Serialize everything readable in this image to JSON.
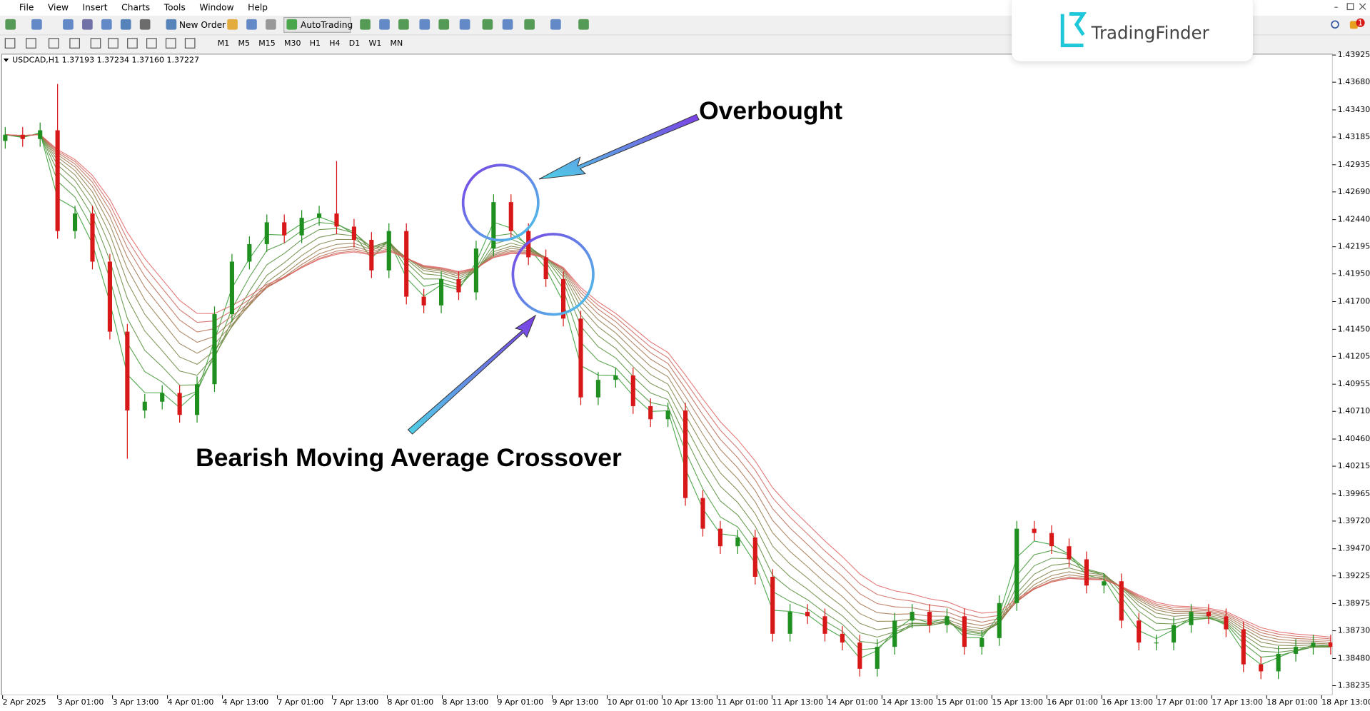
{
  "menu": [
    "File",
    "View",
    "Insert",
    "Charts",
    "Tools",
    "Window",
    "Help"
  ],
  "toolbar": {
    "buttons": [
      "New Order",
      "AutoTrading"
    ],
    "timeframes": [
      "M1",
      "M5",
      "M15",
      "M30",
      "H1",
      "H4",
      "D1",
      "W1",
      "MN"
    ]
  },
  "logo": "TradingFinder",
  "notification_count": 1,
  "chart_data": {
    "type": "candlestick",
    "info": "USDCAD,H1  1.37193 1.37234 1.37160 1.37227",
    "up_color": "#1f8f1f",
    "down_color": "#d81818",
    "ribbon_colors": [
      "#2e9a2e",
      "#e06060"
    ],
    "annotations": [
      "Overbought",
      "Bearish Moving Average Crossover"
    ],
    "ylim": [
      1.38148,
      1.43933
    ],
    "yticks": [
      {
        "value": 1.43925,
        "label": "1.43925"
      },
      {
        "value": 1.4368,
        "label": "1.43680"
      },
      {
        "value": 1.4343,
        "label": "1.43430"
      },
      {
        "value": 1.43185,
        "label": "1.43185"
      },
      {
        "value": 1.42935,
        "label": "1.42935"
      },
      {
        "value": 1.4269,
        "label": "1.42690"
      },
      {
        "value": 1.4244,
        "label": "1.42440"
      },
      {
        "value": 1.42195,
        "label": "1.42195"
      },
      {
        "value": 1.4195,
        "label": "1.41950"
      },
      {
        "value": 1.417,
        "label": "1.41700"
      },
      {
        "value": 1.4145,
        "label": "1.41450"
      },
      {
        "value": 1.41205,
        "label": "1.41205"
      },
      {
        "value": 1.40955,
        "label": "1.40955"
      },
      {
        "value": 1.4071,
        "label": "1.40710"
      },
      {
        "value": 1.4046,
        "label": "1.40460"
      },
      {
        "value": 1.40215,
        "label": "1.40215"
      },
      {
        "value": 1.39965,
        "label": "1.39965"
      },
      {
        "value": 1.3972,
        "label": "1.39720"
      },
      {
        "value": 1.3947,
        "label": "1.39470"
      },
      {
        "value": 1.39225,
        "label": "1.39225"
      },
      {
        "value": 1.38975,
        "label": "1.38975"
      },
      {
        "value": 1.3873,
        "label": "1.38730"
      },
      {
        "value": 1.3848,
        "label": "1.38480"
      },
      {
        "value": 1.38235,
        "label": "1.38235"
      }
    ],
    "time_labels": [
      "2 Apr 2025",
      "3 Apr 01:00",
      "3 Apr 13:00",
      "4 Apr 01:00",
      "4 Apr 13:00",
      "7 Apr 01:00",
      "7 Apr 13:00",
      "8 Apr 01:00",
      "8 Apr 13:00",
      "9 Apr 01:00",
      "9 Apr 13:00",
      "10 Apr 01:00",
      "10 Apr 13:00",
      "11 Apr 01:00",
      "11 Apr 13:00",
      "14 Apr 01:00",
      "14 Apr 13:00",
      "15 Apr 01:00",
      "15 Apr 13:00",
      "16 Apr 01:00",
      "16 Apr 13:00",
      "17 Apr 01:00",
      "17 Apr 13:00",
      "18 Apr 01:00",
      "18 Apr 13:00"
    ],
    "ohlc": [
      [
        1.4315,
        1.43276,
        1.4308,
        1.43206
      ],
      [
        1.43206,
        1.43276,
        1.43097,
        1.43167
      ],
      [
        1.43167,
        1.43316,
        1.43097,
        1.43246
      ],
      [
        1.43246,
        1.43664,
        1.42267,
        1.42337
      ],
      [
        1.42337,
        1.42565,
        1.42267,
        1.42495
      ],
      [
        1.42495,
        1.42565,
        1.41991,
        1.42061
      ],
      [
        1.42061,
        1.42131,
        1.41359,
        1.41429
      ],
      [
        1.41429,
        1.41499,
        1.40282,
        1.40718
      ],
      [
        1.40718,
        1.40867,
        1.40648,
        1.40797
      ],
      [
        1.40797,
        1.40946,
        1.40727,
        1.40876
      ],
      [
        1.40876,
        1.40946,
        1.40608,
        1.40678
      ],
      [
        1.40678,
        1.41025,
        1.40608,
        1.40955
      ],
      [
        1.40955,
        1.41657,
        1.40885,
        1.41587
      ],
      [
        1.41587,
        1.42131,
        1.41517,
        1.42061
      ],
      [
        1.42061,
        1.42289,
        1.41991,
        1.42219
      ],
      [
        1.42219,
        1.42486,
        1.42149,
        1.42416
      ],
      [
        1.42416,
        1.42486,
        1.42228,
        1.42298
      ],
      [
        1.42298,
        1.42526,
        1.42228,
        1.42456
      ],
      [
        1.42456,
        1.42565,
        1.42386,
        1.42495
      ],
      [
        1.42495,
        1.42969,
        1.42307,
        1.42377
      ],
      [
        1.42377,
        1.42447,
        1.42188,
        1.42258
      ],
      [
        1.42258,
        1.42328,
        1.41912,
        1.41982
      ],
      [
        1.41982,
        1.42407,
        1.41912,
        1.42337
      ],
      [
        1.42337,
        1.42407,
        1.41675,
        1.41745
      ],
      [
        1.41745,
        1.41815,
        1.41596,
        1.41666
      ],
      [
        1.41666,
        1.41973,
        1.41596,
        1.41903
      ],
      [
        1.41903,
        1.41973,
        1.41714,
        1.41784
      ],
      [
        1.41784,
        1.42249,
        1.41714,
        1.42179
      ],
      [
        1.42179,
        1.42668,
        1.42109,
        1.42598
      ],
      [
        1.42598,
        1.42668,
        1.42267,
        1.42337
      ],
      [
        1.42337,
        1.42407,
        1.4203,
        1.421
      ],
      [
        1.421,
        1.4217,
        1.41833,
        1.41903
      ],
      [
        1.41903,
        1.41973,
        1.41477,
        1.41547
      ],
      [
        1.41547,
        1.41617,
        1.40766,
        1.40836
      ],
      [
        1.40836,
        1.41064,
        1.40766,
        1.40994
      ],
      [
        1.40994,
        1.41104,
        1.40924,
        1.41034
      ],
      [
        1.41034,
        1.41104,
        1.40687,
        1.40757
      ],
      [
        1.40757,
        1.40827,
        1.40569,
        1.40639
      ],
      [
        1.40639,
        1.40788,
        1.40569,
        1.40718
      ],
      [
        1.40718,
        1.40788,
        1.39858,
        1.39928
      ],
      [
        1.39928,
        1.39998,
        1.39581,
        1.39651
      ],
      [
        1.39651,
        1.39721,
        1.39423,
        1.39493
      ],
      [
        1.39493,
        1.39642,
        1.39423,
        1.39572
      ],
      [
        1.39572,
        1.39642,
        1.39147,
        1.39217
      ],
      [
        1.39217,
        1.39287,
        1.38633,
        1.38703
      ],
      [
        1.38703,
        1.38971,
        1.38633,
        1.38901
      ],
      [
        1.38901,
        1.38971,
        1.38791,
        1.38861
      ],
      [
        1.38861,
        1.38931,
        1.38633,
        1.38703
      ],
      [
        1.38703,
        1.38773,
        1.38554,
        1.38624
      ],
      [
        1.38624,
        1.38694,
        1.38317,
        1.38387
      ],
      [
        1.38387,
        1.38655,
        1.38317,
        1.38585
      ],
      [
        1.38585,
        1.38892,
        1.38515,
        1.38822
      ],
      [
        1.38822,
        1.38971,
        1.38752,
        1.38901
      ],
      [
        1.38901,
        1.38971,
        1.38712,
        1.38782
      ],
      [
        1.38782,
        1.38931,
        1.38712,
        1.38861
      ],
      [
        1.38861,
        1.38931,
        1.38515,
        1.38585
      ],
      [
        1.38585,
        1.38734,
        1.38515,
        1.38664
      ],
      [
        1.38664,
        1.3905,
        1.38594,
        1.3898
      ],
      [
        1.3898,
        1.39721,
        1.3891,
        1.39651
      ],
      [
        1.39651,
        1.39721,
        1.39542,
        1.39612
      ],
      [
        1.39612,
        1.39682,
        1.39423,
        1.39493
      ],
      [
        1.39493,
        1.39563,
        1.39305,
        1.39375
      ],
      [
        1.39375,
        1.39445,
        1.39068,
        1.39138
      ],
      [
        1.39138,
        1.39247,
        1.39068,
        1.39177
      ],
      [
        1.39177,
        1.39247,
        1.38752,
        1.38822
      ],
      [
        1.38822,
        1.38892,
        1.38554,
        1.38624
      ],
      [
        1.38624,
        1.38694,
        1.38554,
        1.38624
      ],
      [
        1.38624,
        1.38852,
        1.38554,
        1.38782
      ],
      [
        1.38782,
        1.38971,
        1.38712,
        1.38901
      ],
      [
        1.38901,
        1.38971,
        1.38791,
        1.38861
      ],
      [
        1.38861,
        1.38931,
        1.38673,
        1.38743
      ],
      [
        1.38743,
        1.38813,
        1.38357,
        1.38427
      ],
      [
        1.38427,
        1.38497,
        1.38294,
        1.38364
      ],
      [
        1.38364,
        1.38592,
        1.38294,
        1.38522
      ],
      [
        1.38522,
        1.38655,
        1.38452,
        1.38585
      ],
      [
        1.38585,
        1.38694,
        1.38515,
        1.38624
      ],
      [
        1.38624,
        1.38694,
        1.38515,
        1.38585
      ]
    ]
  }
}
